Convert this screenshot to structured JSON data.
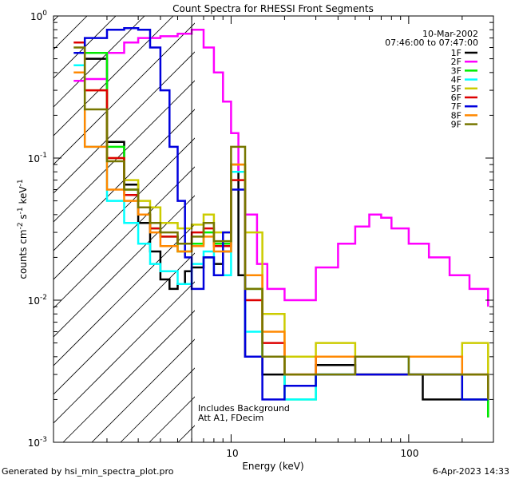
{
  "chart_data": {
    "type": "line",
    "title": "Count Spectra for RHESSI Front Segments",
    "date": "10-Mar-2002",
    "time_range": "07:46:00 to 07:47:00",
    "xlabel": "Energy (keV)",
    "ylabel": "counts cm^-2 s^-1 keV^-1",
    "x_scale": "log",
    "y_scale": "log",
    "xlim": [
      1.0,
      300
    ],
    "ylim": [
      0.001,
      1.0
    ],
    "x_tick_labels": [
      "10",
      "100"
    ],
    "y_tick_labels": [
      "10^0",
      "10^-1",
      "10^-2",
      "10^-3"
    ],
    "grid": false,
    "legend_position": "top-right",
    "hatched_region_keV": [
      1.0,
      6.0
    ],
    "annotations": [
      "Includes Background",
      "Att A1, FDecim"
    ],
    "footer_left": "Generated by hsi_min_spectra_plot.pro",
    "footer_right": "6-Apr-2023 14:33",
    "series": [
      {
        "name": "1F",
        "color": "#000000",
        "points": [
          [
            1.5,
            0.5
          ],
          [
            2.0,
            0.13
          ],
          [
            2.5,
            0.065
          ],
          [
            3.0,
            0.035
          ],
          [
            3.5,
            0.022
          ],
          [
            4.0,
            0.014
          ],
          [
            4.5,
            0.012
          ],
          [
            5.0,
            0.013
          ],
          [
            5.5,
            0.016
          ],
          [
            6.0,
            0.017
          ],
          [
            7.0,
            0.02
          ],
          [
            8.0,
            0.018
          ],
          [
            9.0,
            0.022
          ],
          [
            10.0,
            0.09
          ],
          [
            11.0,
            0.015
          ],
          [
            12.0,
            0.004
          ],
          [
            15.0,
            0.003
          ],
          [
            20.0,
            0.0025
          ],
          [
            30.0,
            0.0035
          ],
          [
            50.0,
            0.003
          ],
          [
            80.0,
            0.003
          ],
          [
            120.0,
            0.002
          ],
          [
            200.0,
            0.002
          ],
          [
            280.0,
            0.0015
          ]
        ]
      },
      {
        "name": "2F",
        "color": "#ff00ff",
        "points": [
          [
            1.3,
            0.35
          ],
          [
            1.5,
            0.36
          ],
          [
            2.0,
            0.55
          ],
          [
            2.5,
            0.65
          ],
          [
            3.0,
            0.7
          ],
          [
            3.5,
            0.7
          ],
          [
            4.0,
            0.72
          ],
          [
            5.0,
            0.75
          ],
          [
            6.0,
            0.8
          ],
          [
            7.0,
            0.6
          ],
          [
            8.0,
            0.4
          ],
          [
            9.0,
            0.25
          ],
          [
            10.0,
            0.15
          ],
          [
            11.0,
            0.08
          ],
          [
            12.0,
            0.04
          ],
          [
            14.0,
            0.018
          ],
          [
            16.0,
            0.012
          ],
          [
            20.0,
            0.01
          ],
          [
            30.0,
            0.017
          ],
          [
            40.0,
            0.025
          ],
          [
            50.0,
            0.033
          ],
          [
            60.0,
            0.04
          ],
          [
            70.0,
            0.038
          ],
          [
            80.0,
            0.032
          ],
          [
            100.0,
            0.025
          ],
          [
            130.0,
            0.02
          ],
          [
            170.0,
            0.015
          ],
          [
            220.0,
            0.012
          ],
          [
            280.0,
            0.009
          ]
        ]
      },
      {
        "name": "3F",
        "color": "#00ee00",
        "points": [
          [
            1.5,
            0.55
          ],
          [
            2.0,
            0.12
          ],
          [
            2.5,
            0.06
          ],
          [
            3.0,
            0.04
          ],
          [
            3.5,
            0.032
          ],
          [
            4.0,
            0.028
          ],
          [
            5.0,
            0.022
          ],
          [
            6.0,
            0.025
          ],
          [
            7.0,
            0.03
          ],
          [
            8.0,
            0.025
          ],
          [
            10.0,
            0.08
          ],
          [
            12.0,
            0.012
          ],
          [
            15.0,
            0.004
          ],
          [
            20.0,
            0.002
          ],
          [
            30.0,
            0.003
          ],
          [
            50.0,
            0.003
          ],
          [
            100.0,
            0.003
          ],
          [
            200.0,
            0.002
          ],
          [
            280.0,
            0.0015
          ]
        ]
      },
      {
        "name": "4F",
        "color": "#00ffff",
        "points": [
          [
            1.3,
            0.45
          ],
          [
            1.5,
            0.12
          ],
          [
            2.0,
            0.05
          ],
          [
            2.5,
            0.035
          ],
          [
            3.0,
            0.025
          ],
          [
            3.5,
            0.018
          ],
          [
            4.0,
            0.016
          ],
          [
            5.0,
            0.013
          ],
          [
            6.0,
            0.018
          ],
          [
            7.0,
            0.022
          ],
          [
            8.0,
            0.015
          ],
          [
            10.0,
            0.08
          ],
          [
            12.0,
            0.006
          ],
          [
            15.0,
            0.004
          ],
          [
            20.0,
            0.002
          ],
          [
            30.0,
            0.003
          ],
          [
            50.0,
            0.004
          ],
          [
            100.0,
            0.003
          ],
          [
            200.0,
            0.003
          ],
          [
            280.0,
            0.002
          ]
        ]
      },
      {
        "name": "5F",
        "color": "#cccc00",
        "points": [
          [
            1.5,
            0.3
          ],
          [
            2.0,
            0.1
          ],
          [
            2.5,
            0.07
          ],
          [
            3.0,
            0.05
          ],
          [
            3.5,
            0.045
          ],
          [
            4.0,
            0.035
          ],
          [
            5.0,
            0.032
          ],
          [
            6.0,
            0.034
          ],
          [
            7.0,
            0.04
          ],
          [
            8.0,
            0.03
          ],
          [
            10.0,
            0.09
          ],
          [
            12.0,
            0.03
          ],
          [
            15.0,
            0.008
          ],
          [
            20.0,
            0.004
          ],
          [
            30.0,
            0.005
          ],
          [
            50.0,
            0.004
          ],
          [
            100.0,
            0.004
          ],
          [
            200.0,
            0.005
          ],
          [
            280.0,
            0.003
          ]
        ]
      },
      {
        "name": "6F",
        "color": "#dd0000",
        "points": [
          [
            1.3,
            0.65
          ],
          [
            1.5,
            0.3
          ],
          [
            2.0,
            0.1
          ],
          [
            2.5,
            0.055
          ],
          [
            3.0,
            0.04
          ],
          [
            3.5,
            0.032
          ],
          [
            4.0,
            0.028
          ],
          [
            5.0,
            0.025
          ],
          [
            6.0,
            0.03
          ],
          [
            7.0,
            0.032
          ],
          [
            8.0,
            0.024
          ],
          [
            10.0,
            0.07
          ],
          [
            12.0,
            0.01
          ],
          [
            15.0,
            0.005
          ],
          [
            20.0,
            0.003
          ],
          [
            30.0,
            0.004
          ],
          [
            50.0,
            0.003
          ],
          [
            100.0,
            0.003
          ],
          [
            200.0,
            0.003
          ],
          [
            280.0,
            0.002
          ]
        ]
      },
      {
        "name": "7F",
        "color": "#0000dd",
        "points": [
          [
            1.3,
            0.55
          ],
          [
            1.5,
            0.7
          ],
          [
            2.0,
            0.8
          ],
          [
            2.5,
            0.82
          ],
          [
            3.0,
            0.8
          ],
          [
            3.5,
            0.6
          ],
          [
            4.0,
            0.3
          ],
          [
            4.5,
            0.12
          ],
          [
            5.0,
            0.05
          ],
          [
            5.5,
            0.02
          ],
          [
            6.0,
            0.012
          ],
          [
            7.0,
            0.02
          ],
          [
            8.0,
            0.015
          ],
          [
            9.0,
            0.03
          ],
          [
            10.0,
            0.06
          ],
          [
            12.0,
            0.004
          ],
          [
            15.0,
            0.002
          ],
          [
            20.0,
            0.0025
          ],
          [
            30.0,
            0.003
          ],
          [
            50.0,
            0.003
          ],
          [
            100.0,
            0.003
          ],
          [
            200.0,
            0.002
          ],
          [
            280.0,
            0.002
          ]
        ]
      },
      {
        "name": "8F",
        "color": "#ff8800",
        "points": [
          [
            1.3,
            0.4
          ],
          [
            1.5,
            0.12
          ],
          [
            2.0,
            0.06
          ],
          [
            2.5,
            0.05
          ],
          [
            3.0,
            0.04
          ],
          [
            3.5,
            0.03
          ],
          [
            4.0,
            0.024
          ],
          [
            5.0,
            0.022
          ],
          [
            6.0,
            0.024
          ],
          [
            7.0,
            0.028
          ],
          [
            8.0,
            0.022
          ],
          [
            10.0,
            0.09
          ],
          [
            12.0,
            0.015
          ],
          [
            15.0,
            0.006
          ],
          [
            20.0,
            0.003
          ],
          [
            30.0,
            0.004
          ],
          [
            50.0,
            0.004
          ],
          [
            100.0,
            0.004
          ],
          [
            200.0,
            0.003
          ],
          [
            280.0,
            0.002
          ]
        ]
      },
      {
        "name": "9F",
        "color": "#777700",
        "points": [
          [
            1.3,
            0.6
          ],
          [
            1.5,
            0.22
          ],
          [
            2.0,
            0.095
          ],
          [
            2.5,
            0.06
          ],
          [
            3.0,
            0.045
          ],
          [
            3.5,
            0.035
          ],
          [
            4.0,
            0.03
          ],
          [
            5.0,
            0.025
          ],
          [
            6.0,
            0.028
          ],
          [
            7.0,
            0.035
          ],
          [
            8.0,
            0.026
          ],
          [
            10.0,
            0.12
          ],
          [
            12.0,
            0.012
          ],
          [
            15.0,
            0.004
          ],
          [
            20.0,
            0.003
          ],
          [
            30.0,
            0.003
          ],
          [
            50.0,
            0.004
          ],
          [
            100.0,
            0.003
          ],
          [
            200.0,
            0.003
          ],
          [
            280.0,
            0.002
          ]
        ]
      }
    ]
  }
}
